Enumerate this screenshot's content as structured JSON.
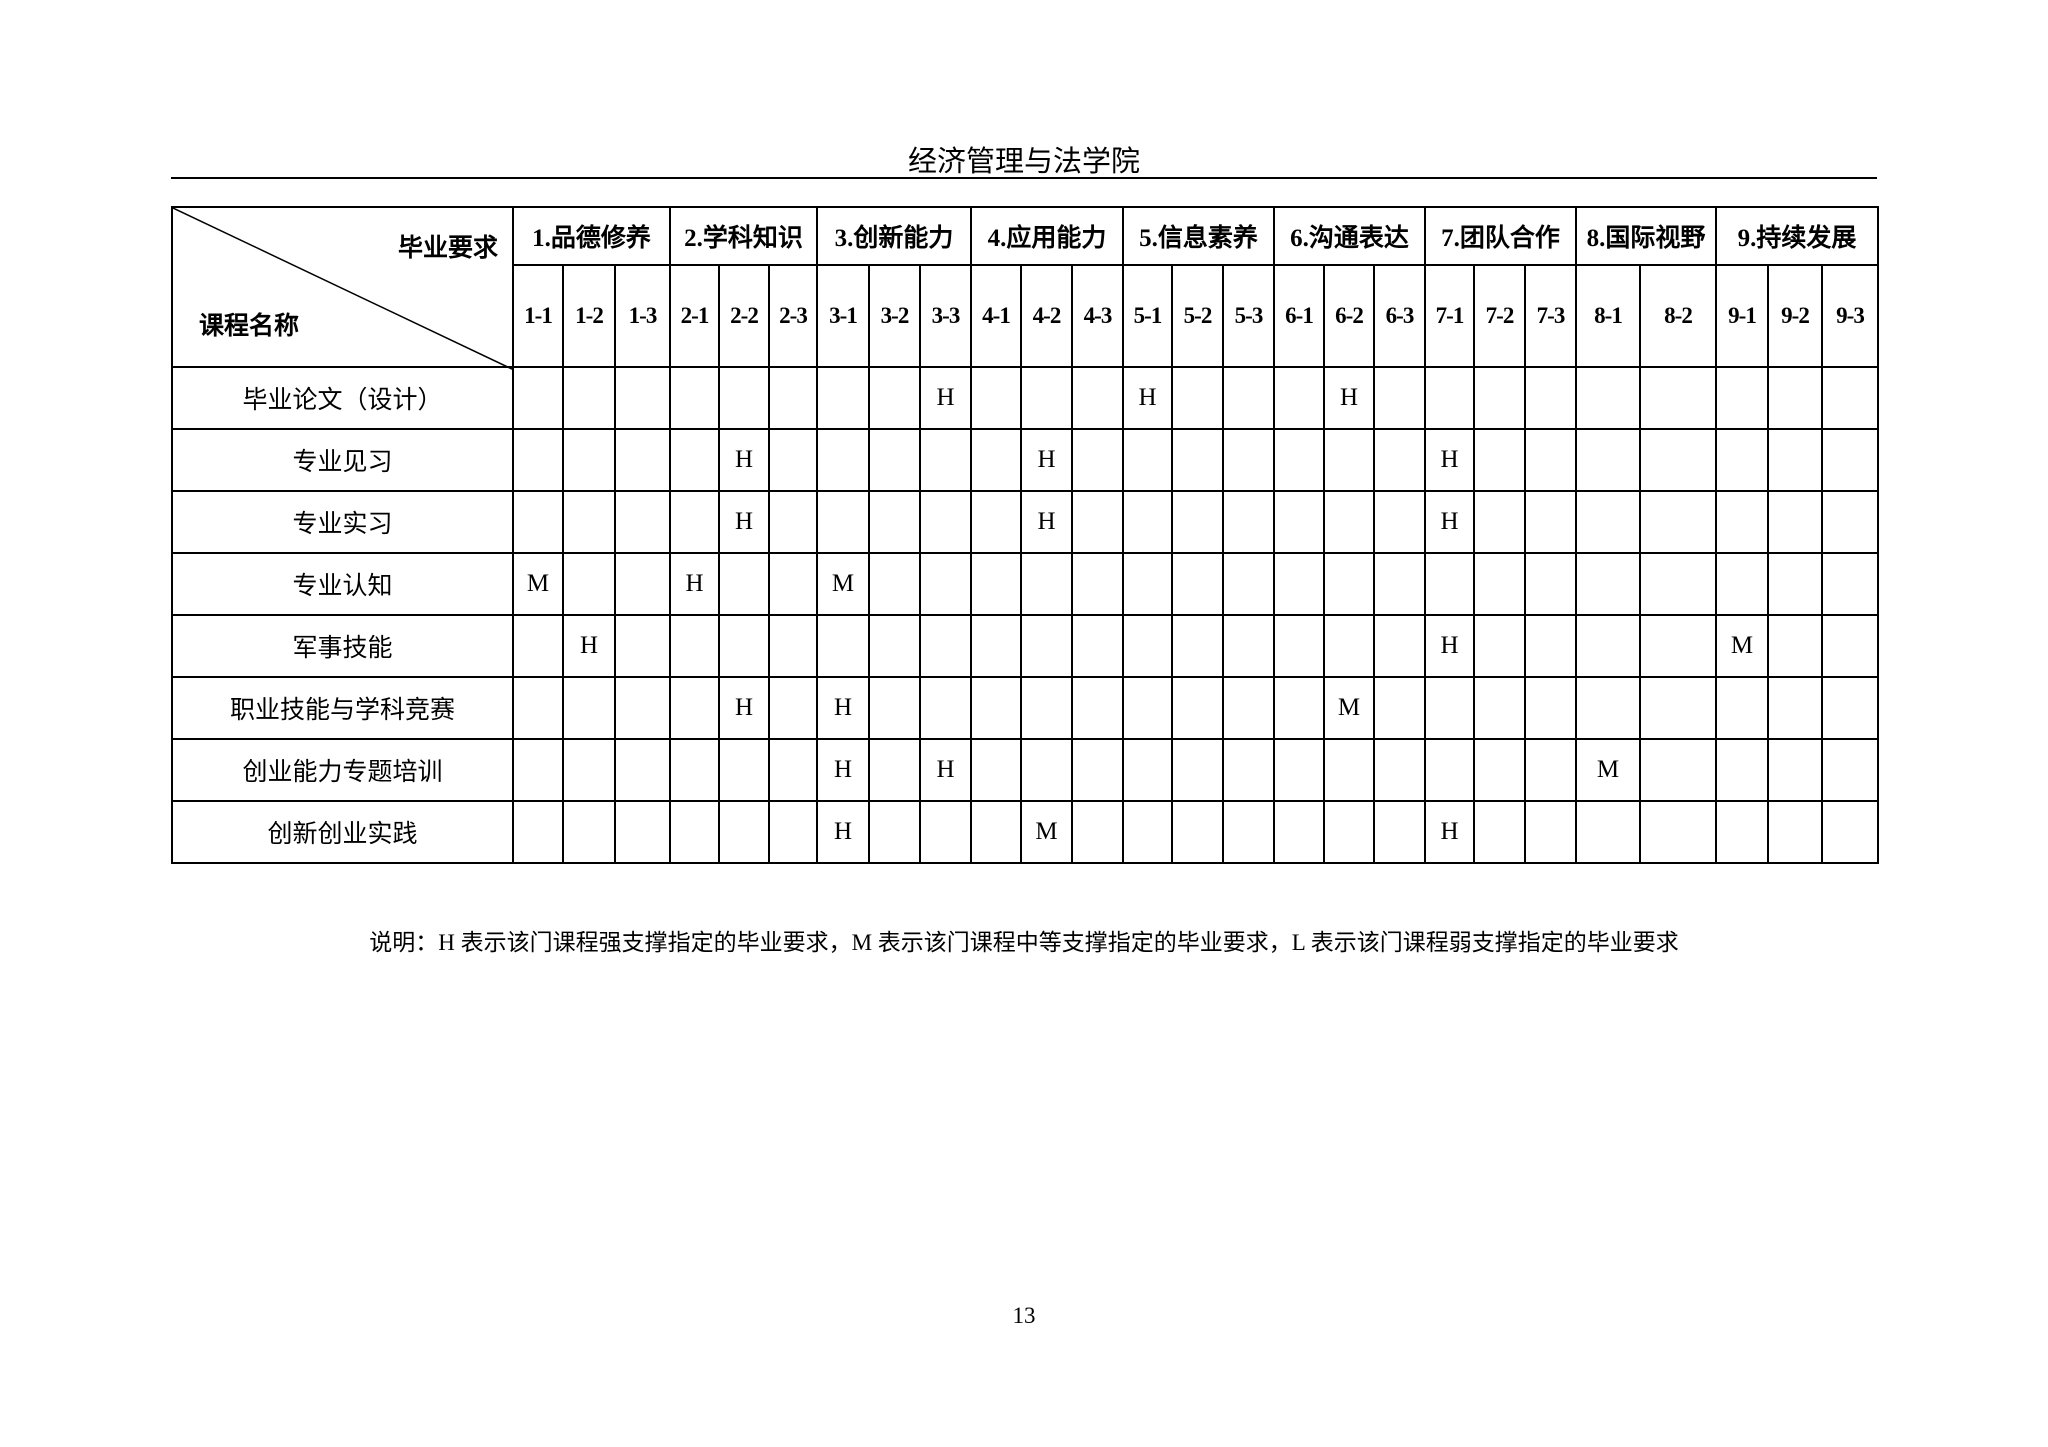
{
  "header": {
    "title": "经济管理与法学院"
  },
  "table": {
    "corner_requirement_label": "毕业要求",
    "corner_course_label": "课程名称",
    "groups": [
      {
        "label": "1.品德修养",
        "subs": [
          "1-1",
          "1-2",
          "1-3"
        ]
      },
      {
        "label": "2.学科知识",
        "subs": [
          "2-1",
          "2-2",
          "2-3"
        ]
      },
      {
        "label": "3.创新能力",
        "subs": [
          "3-1",
          "3-2",
          "3-3"
        ]
      },
      {
        "label": "4.应用能力",
        "subs": [
          "4-1",
          "4-2",
          "4-3"
        ]
      },
      {
        "label": "5.信息素养",
        "subs": [
          "5-1",
          "5-2",
          "5-3"
        ]
      },
      {
        "label": "6.沟通表达",
        "subs": [
          "6-1",
          "6-2",
          "6-3"
        ]
      },
      {
        "label": "7.团队合作",
        "subs": [
          "7-1",
          "7-2",
          "7-3"
        ]
      },
      {
        "label": "8.国际视野",
        "subs": [
          "8-1",
          "8-2"
        ]
      },
      {
        "label": "9.持续发展",
        "subs": [
          "9-1",
          "9-2",
          "9-3"
        ]
      }
    ],
    "rows": [
      {
        "course": "毕业论文（设计）",
        "cells": [
          "",
          "",
          "",
          "",
          "",
          "",
          "",
          "",
          "H",
          "",
          "",
          "",
          "H",
          "",
          "",
          "",
          "H",
          "",
          "",
          "",
          "",
          "",
          "",
          "",
          "",
          ""
        ]
      },
      {
        "course": "专业见习",
        "cells": [
          "",
          "",
          "",
          "",
          "H",
          "",
          "",
          "",
          "",
          "",
          "H",
          "",
          "",
          "",
          "",
          "",
          "",
          "",
          "H",
          "",
          "",
          "",
          "",
          "",
          "",
          ""
        ]
      },
      {
        "course": "专业实习",
        "cells": [
          "",
          "",
          "",
          "",
          "H",
          "",
          "",
          "",
          "",
          "",
          "H",
          "",
          "",
          "",
          "",
          "",
          "",
          "",
          "H",
          "",
          "",
          "",
          "",
          "",
          "",
          ""
        ]
      },
      {
        "course": "专业认知",
        "cells": [
          "M",
          "",
          "",
          "H",
          "",
          "",
          "M",
          "",
          "",
          "",
          "",
          "",
          "",
          "",
          "",
          "",
          "",
          "",
          "",
          "",
          "",
          "",
          "",
          "",
          "",
          ""
        ]
      },
      {
        "course": "军事技能",
        "cells": [
          "",
          "H",
          "",
          "",
          "",
          "",
          "",
          "",
          "",
          "",
          "",
          "",
          "",
          "",
          "",
          "",
          "",
          "",
          "H",
          "",
          "",
          "",
          "",
          "M",
          "",
          ""
        ]
      },
      {
        "course": "职业技能与学科竞赛",
        "cells": [
          "",
          "",
          "",
          "",
          "H",
          "",
          "H",
          "",
          "",
          "",
          "",
          "",
          "",
          "",
          "",
          "",
          "M",
          "",
          "",
          "",
          "",
          "",
          "",
          "",
          "",
          ""
        ]
      },
      {
        "course": "创业能力专题培训",
        "cells": [
          "",
          "",
          "",
          "",
          "",
          "",
          "H",
          "",
          "H",
          "",
          "",
          "",
          "",
          "",
          "",
          "",
          "",
          "",
          "",
          "",
          "",
          "M",
          "",
          "",
          "",
          ""
        ]
      },
      {
        "course": "创新创业实践",
        "cells": [
          "",
          "",
          "",
          "",
          "",
          "",
          "H",
          "",
          "",
          "",
          "M",
          "",
          "",
          "",
          "",
          "",
          "",
          "",
          "H",
          "",
          "",
          "",
          "",
          "",
          "",
          ""
        ]
      }
    ]
  },
  "footnote": "说明：H 表示该门课程强支撑指定的毕业要求，M 表示该门课程中等支撑指定的毕业要求，L 表示该门课程弱支撑指定的毕业要求",
  "page_number": "13"
}
